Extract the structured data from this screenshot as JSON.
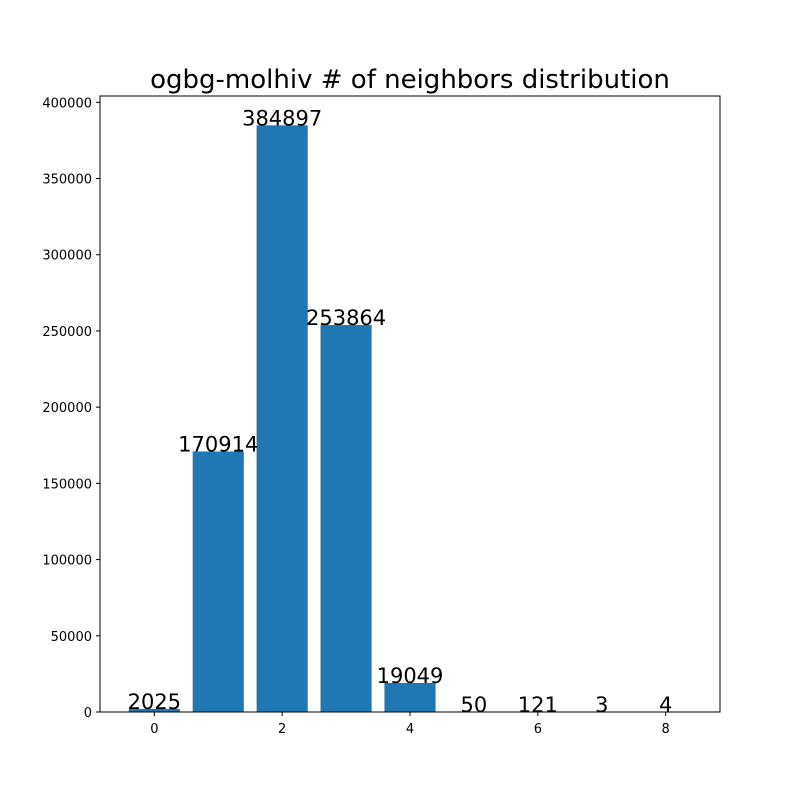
{
  "chart_data": {
    "type": "bar",
    "title": "ogbg-molhiv # of neighbors distribution",
    "xlabel": "",
    "ylabel": "",
    "categories": [
      0,
      1,
      2,
      3,
      4,
      5,
      6,
      7,
      8
    ],
    "values": [
      2025,
      170914,
      384897,
      253864,
      19049,
      50,
      121,
      3,
      4
    ],
    "data_labels": [
      "2025",
      "170914",
      "384897",
      "253864",
      "19049",
      "50",
      "121",
      "3",
      "4"
    ],
    "x_ticks": [
      0,
      2,
      4,
      6,
      8
    ],
    "x_tick_labels": [
      "0",
      "2",
      "4",
      "6",
      "8"
    ],
    "y_ticks": [
      0,
      50000,
      100000,
      150000,
      200000,
      250000,
      300000,
      350000,
      400000
    ],
    "y_tick_labels": [
      "0",
      "50000",
      "100000",
      "150000",
      "200000",
      "250000",
      "300000",
      "350000",
      "400000"
    ],
    "xlim": [
      -0.85,
      8.85
    ],
    "ylim": [
      0,
      404142
    ],
    "grid": false,
    "bar_color": "#1f77b4"
  }
}
